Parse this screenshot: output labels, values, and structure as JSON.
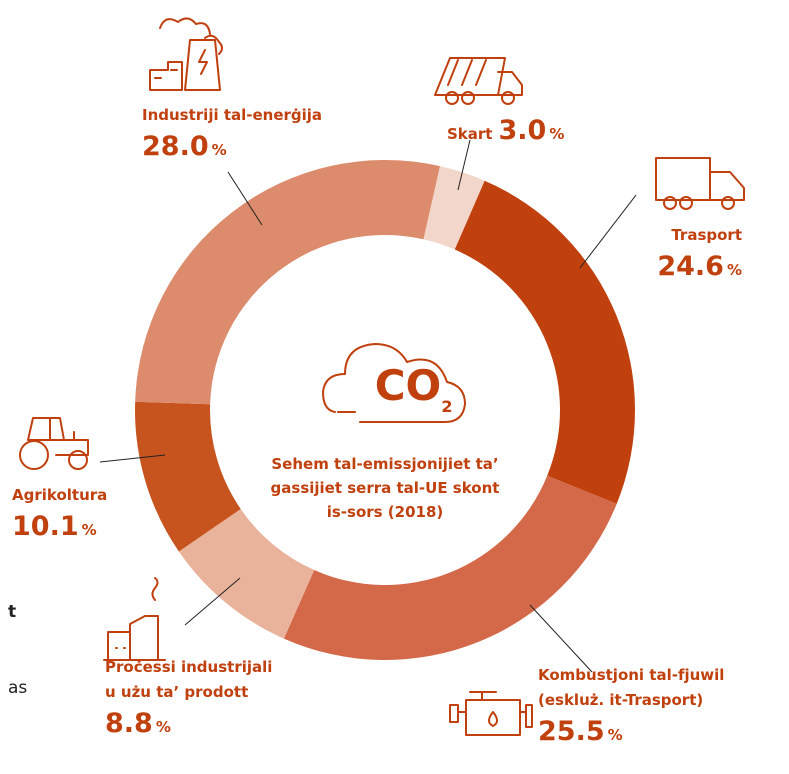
{
  "chart_data": {
    "type": "donut",
    "title": "Sehem tal-emissjonijiet ta’\ngassijiet serra tal-UE skont\nis-sors (2018)",
    "center_icon": {
      "main": "CO",
      "sub": "2"
    },
    "categories": [
      "Skart",
      "Trasport",
      "Kombustjoni tal-fjuwil\n(eskluż. it-Trasport)",
      "Proċessi industrijali\nu użu ta’ prodott",
      "Agrikoltura",
      "Industriji tal-enerġija"
    ],
    "values": [
      3.0,
      24.6,
      25.5,
      8.8,
      10.1,
      28.0
    ],
    "value_labels": [
      "3.0",
      "24.6",
      "25.5",
      "8.8",
      "10.1",
      "28.0"
    ],
    "unit": "%",
    "colors": [
      "#f2d6ca",
      "#c0400e",
      "#d4694a",
      "#e9b39b",
      "#c7531f",
      "#dc8c6c"
    ],
    "fragments": [
      "t",
      "as"
    ]
  }
}
